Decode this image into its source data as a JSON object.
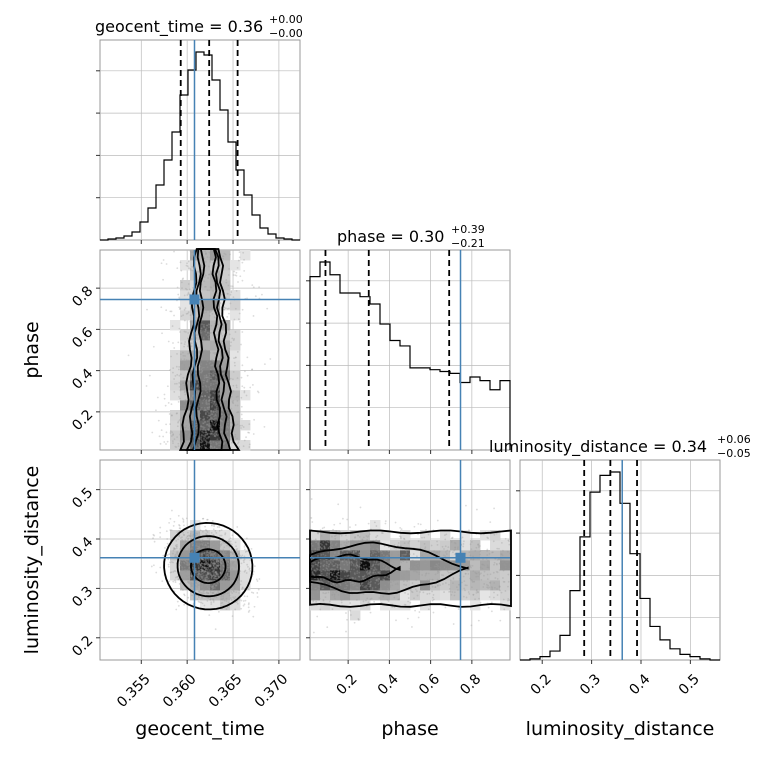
{
  "chart_data": {
    "type": "corner",
    "parameters": [
      "geocent_time",
      "phase",
      "luminosity_distance"
    ],
    "axis_labels": {
      "geocent_time": "geocent_time",
      "phase": "phase",
      "luminosity_distance": "luminosity_distance"
    },
    "ranges": {
      "geocent_time": [
        0.3505,
        0.3723
      ],
      "phase": [
        0.015,
        0.985
      ],
      "luminosity_distance": [
        0.155,
        0.56
      ]
    },
    "ticks": {
      "geocent_time": [
        "0.355",
        "0.360",
        "0.365",
        "0.370"
      ],
      "phase": [
        "0.2",
        "0.4",
        "0.6",
        "0.8"
      ],
      "luminosity_distance": [
        "0.2",
        "0.3",
        "0.4",
        "0.5"
      ]
    },
    "truths": {
      "geocent_time": 0.3608,
      "phase": 0.745,
      "luminosity_distance": 0.362
    },
    "titles": [
      {
        "param": "geocent_time",
        "label": "geocent_time",
        "median": "0.36",
        "plus": "+0.00",
        "minus": "−0.00"
      },
      {
        "param": "phase",
        "label": "phase",
        "median": "0.30",
        "plus": "+0.39",
        "minus": "−0.21"
      },
      {
        "param": "luminosity_distance",
        "label": "luminosity_distance",
        "median": "0.34",
        "plus": "+0.06",
        "minus": "−0.05"
      }
    ],
    "quantiles": {
      "geocent_time": [
        0.3593,
        0.3624,
        0.3655
      ],
      "phase": [
        0.09,
        0.3,
        0.69
      ],
      "luminosity_distance": [
        0.285,
        0.338,
        0.392
      ]
    },
    "histograms": {
      "geocent_time": {
        "edges_from": 0.3505,
        "edges_to": 0.3723,
        "counts": [
          0,
          1,
          2,
          4,
          8,
          18,
          32,
          55,
          80,
          108,
          145,
          170,
          188,
          185,
          160,
          130,
          98,
          70,
          45,
          25,
          12,
          6,
          2,
          1,
          0
        ]
      },
      "phase": {
        "edges_from": 0.015,
        "edges_to": 0.985,
        "counts": [
          95,
          103,
          96,
          86,
          86,
          84,
          80,
          69,
          60,
          57,
          45,
          45,
          44,
          43,
          42,
          37,
          40,
          38,
          33,
          38
        ]
      },
      "luminosity_distance": {
        "edges_from": 0.155,
        "edges_to": 0.56,
        "counts": [
          0,
          1,
          3,
          8,
          22,
          62,
          110,
          150,
          165,
          168,
          140,
          95,
          55,
          30,
          18,
          10,
          5,
          3,
          1,
          0
        ]
      }
    },
    "posterior_2d": {
      "geocent_time_vs_phase": {
        "x_center": 0.3623,
        "x_sigma": 0.0021,
        "y_mode": 0.13,
        "contour_levels": 3
      },
      "geocent_time_vs_luminosity_distance": {
        "x_center": 0.3623,
        "y_center": 0.345,
        "x_sigma": 0.0021,
        "y_sigma": 0.038,
        "correlation": -0.3,
        "contour_levels": 3
      },
      "phase_vs_luminosity_distance": {
        "x_mode": 0.12,
        "y_center": 0.34,
        "y_sigma": 0.04,
        "contour_levels": 3
      }
    },
    "grid": true,
    "colors": {
      "histogram": "#000000",
      "truth": "#4682b4",
      "samples": "#9a9a9a",
      "grid": "#bbbbbb",
      "frame": "#999999",
      "quantile": "#000000"
    }
  }
}
